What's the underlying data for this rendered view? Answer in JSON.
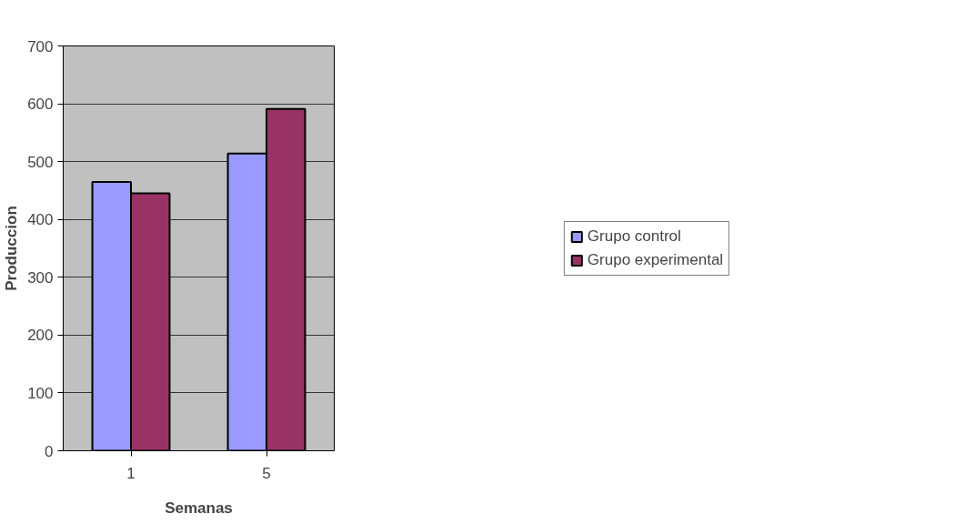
{
  "chart_data": {
    "type": "bar",
    "xlabel": "Semanas",
    "ylabel": "Produccion",
    "categories": [
      "1",
      "5"
    ],
    "series": [
      {
        "name": "Grupo control",
        "color": "#9999ff",
        "values": [
          465,
          514
        ]
      },
      {
        "name": "Grupo experimental",
        "color": "#993366",
        "values": [
          445,
          591
        ]
      }
    ],
    "ylim": [
      0,
      700
    ],
    "yticks": [
      0,
      100,
      200,
      300,
      400,
      500,
      600,
      700
    ],
    "grid": "y",
    "legend": "right"
  }
}
